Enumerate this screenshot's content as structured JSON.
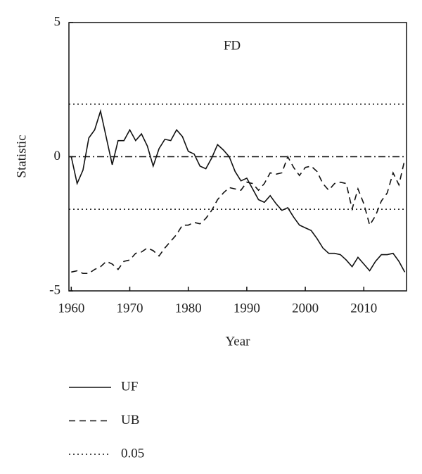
{
  "chart_data": {
    "type": "line",
    "annotation": "FD",
    "x_label": "Year",
    "y_label": "Statistic",
    "x": [
      1960,
      1961,
      1962,
      1963,
      1964,
      1965,
      1966,
      1967,
      1968,
      1969,
      1970,
      1971,
      1972,
      1973,
      1974,
      1975,
      1976,
      1977,
      1978,
      1979,
      1980,
      1981,
      1982,
      1983,
      1984,
      1985,
      1986,
      1987,
      1988,
      1989,
      1990,
      1991,
      1992,
      1993,
      1994,
      1995,
      1996,
      1997,
      1998,
      1999,
      2000,
      2001,
      2002,
      2003,
      2004,
      2005,
      2006,
      2007,
      2008,
      2009,
      2010,
      2011,
      2012,
      2013,
      2014,
      2015,
      2016,
      2017
    ],
    "series": [
      {
        "name": "UF",
        "color": "#111111",
        "dash": "solid",
        "values": [
          0,
          -1.0,
          -0.5,
          0.7,
          1.0,
          1.7,
          0.7,
          -0.3,
          0.6,
          0.6,
          1.0,
          0.6,
          0.85,
          0.4,
          -0.35,
          0.3,
          0.65,
          0.6,
          1.0,
          0.75,
          0.2,
          0.1,
          -0.35,
          -0.45,
          -0.05,
          0.45,
          0.25,
          0.0,
          -0.55,
          -0.9,
          -0.8,
          -1.2,
          -1.6,
          -1.7,
          -1.45,
          -1.75,
          -2.0,
          -1.9,
          -2.25,
          -2.55,
          -2.65,
          -2.75,
          -3.05,
          -3.4,
          -3.6,
          -3.6,
          -3.65,
          -3.85,
          -4.1,
          -3.75,
          -4.0,
          -4.25,
          -3.9,
          -3.65,
          -3.65,
          -3.6,
          -3.9,
          -4.3
        ]
      },
      {
        "name": "UB",
        "color": "#111111",
        "dash": "dashed",
        "values": [
          -4.3,
          -4.25,
          -4.35,
          -4.35,
          -4.2,
          -4.1,
          -3.9,
          -4.0,
          -4.2,
          -3.9,
          -3.85,
          -3.6,
          -3.55,
          -3.4,
          -3.5,
          -3.7,
          -3.4,
          -3.15,
          -2.9,
          -2.55,
          -2.55,
          -2.45,
          -2.5,
          -2.3,
          -2.0,
          -1.6,
          -1.35,
          -1.15,
          -1.2,
          -1.25,
          -0.95,
          -1.0,
          -1.25,
          -1.0,
          -0.6,
          -0.65,
          -0.6,
          0.0,
          -0.4,
          -0.7,
          -0.4,
          -0.35,
          -0.55,
          -1.0,
          -1.25,
          -1.0,
          -0.95,
          -1.0,
          -1.95,
          -1.2,
          -1.75,
          -2.55,
          -2.2,
          -1.65,
          -1.35,
          -0.6,
          -1.05,
          -0.1
        ]
      }
    ],
    "reference_lines": [
      {
        "name": "0.05",
        "color": "#111111",
        "dash": "dotted",
        "values": [
          1.96,
          -1.96
        ]
      }
    ],
    "zero_line": {
      "value": 0,
      "dash": "dash-dot"
    },
    "xlim": [
      1959.6,
      2017.3
    ],
    "xticks": [
      1960,
      1970,
      1980,
      1990,
      2000,
      2010
    ],
    "ylim": [
      -5,
      5
    ],
    "yticks": [
      -5,
      0,
      5
    ]
  }
}
